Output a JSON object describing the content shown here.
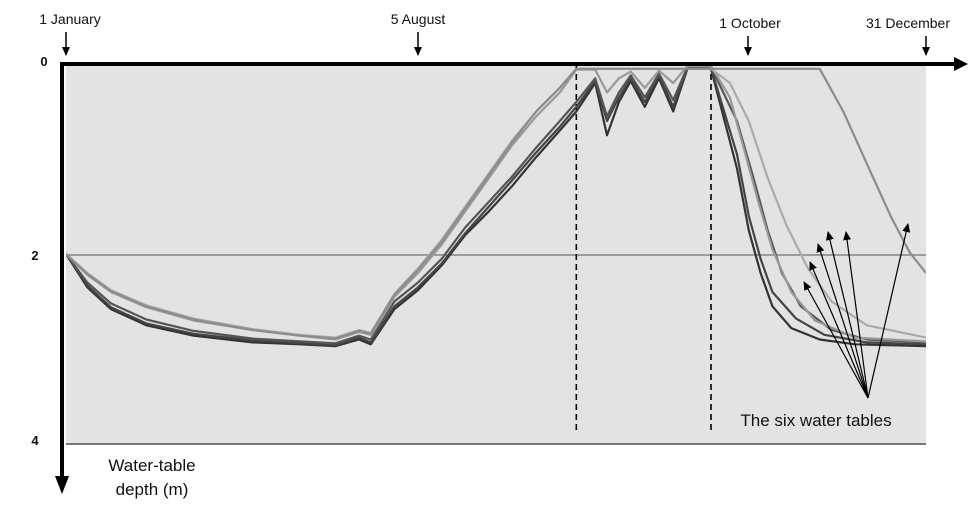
{
  "chart_data": {
    "type": "line",
    "xlabel": "",
    "ylabel": [
      "Water-table",
      "depth (m)"
    ],
    "y_inverted": true,
    "ylim": [
      0,
      4
    ],
    "yticks": [
      "0",
      "2",
      "4"
    ],
    "xlim_day": [
      1,
      365
    ],
    "date_markers": [
      {
        "label": "1 January",
        "day": 1,
        "dashed": false
      },
      {
        "label": "5 August",
        "day": 217,
        "dashed": true
      },
      {
        "label": "1 October",
        "day": 274,
        "dashed": true
      },
      {
        "label": "31 December",
        "day": 365,
        "dashed": false
      }
    ],
    "annotation": "The six water tables",
    "grid": "horizontal line at depth 2",
    "colors": {
      "background": "#e3e3e3",
      "axis": "#000000",
      "dark_series": "#333333",
      "light_series": "#999999"
    },
    "series": [
      {
        "color": "#333333",
        "points": [
          [
            1,
            2.0
          ],
          [
            10,
            2.35
          ],
          [
            20,
            2.58
          ],
          [
            35,
            2.75
          ],
          [
            55,
            2.86
          ],
          [
            80,
            2.93
          ],
          [
            100,
            2.95
          ],
          [
            115,
            2.97
          ],
          [
            125,
            2.9
          ],
          [
            130,
            2.95
          ],
          [
            140,
            2.58
          ],
          [
            150,
            2.38
          ],
          [
            160,
            2.12
          ],
          [
            170,
            1.8
          ],
          [
            180,
            1.55
          ],
          [
            190,
            1.28
          ],
          [
            200,
            0.98
          ],
          [
            210,
            0.7
          ],
          [
            217,
            0.5
          ],
          [
            225,
            0.2
          ],
          [
            230,
            0.75
          ],
          [
            235,
            0.4
          ],
          [
            240,
            0.18
          ],
          [
            246,
            0.45
          ],
          [
            252,
            0.15
          ],
          [
            258,
            0.5
          ],
          [
            264,
            0.05
          ],
          [
            274,
            0.05
          ],
          [
            285,
            1.1
          ],
          [
            290,
            1.75
          ],
          [
            295,
            2.2
          ],
          [
            300,
            2.55
          ],
          [
            308,
            2.78
          ],
          [
            320,
            2.9
          ],
          [
            335,
            2.95
          ],
          [
            365,
            2.97
          ]
        ]
      },
      {
        "color": "#444444",
        "points": [
          [
            1,
            2.0
          ],
          [
            10,
            2.33
          ],
          [
            20,
            2.56
          ],
          [
            35,
            2.73
          ],
          [
            55,
            2.84
          ],
          [
            80,
            2.91
          ],
          [
            100,
            2.94
          ],
          [
            115,
            2.96
          ],
          [
            125,
            2.88
          ],
          [
            130,
            2.93
          ],
          [
            140,
            2.55
          ],
          [
            150,
            2.35
          ],
          [
            160,
            2.1
          ],
          [
            170,
            1.78
          ],
          [
            180,
            1.5
          ],
          [
            190,
            1.22
          ],
          [
            200,
            0.93
          ],
          [
            210,
            0.66
          ],
          [
            217,
            0.45
          ],
          [
            225,
            0.18
          ],
          [
            230,
            0.6
          ],
          [
            235,
            0.35
          ],
          [
            240,
            0.15
          ],
          [
            246,
            0.4
          ],
          [
            252,
            0.12
          ],
          [
            258,
            0.45
          ],
          [
            264,
            0.04
          ],
          [
            274,
            0.04
          ],
          [
            285,
            0.95
          ],
          [
            290,
            1.6
          ],
          [
            295,
            2.05
          ],
          [
            300,
            2.4
          ],
          [
            310,
            2.68
          ],
          [
            322,
            2.85
          ],
          [
            340,
            2.93
          ],
          [
            365,
            2.95
          ]
        ]
      },
      {
        "color": "#555555",
        "points": [
          [
            1,
            2.0
          ],
          [
            10,
            2.3
          ],
          [
            20,
            2.52
          ],
          [
            35,
            2.69
          ],
          [
            55,
            2.81
          ],
          [
            80,
            2.89
          ],
          [
            100,
            2.92
          ],
          [
            115,
            2.94
          ],
          [
            125,
            2.86
          ],
          [
            130,
            2.9
          ],
          [
            140,
            2.5
          ],
          [
            150,
            2.3
          ],
          [
            160,
            2.05
          ],
          [
            170,
            1.72
          ],
          [
            180,
            1.45
          ],
          [
            190,
            1.18
          ],
          [
            200,
            0.88
          ],
          [
            210,
            0.6
          ],
          [
            217,
            0.4
          ],
          [
            225,
            0.15
          ],
          [
            230,
            0.55
          ],
          [
            235,
            0.3
          ],
          [
            240,
            0.12
          ],
          [
            246,
            0.35
          ],
          [
            252,
            0.1
          ],
          [
            258,
            0.38
          ],
          [
            264,
            0.03
          ],
          [
            274,
            0.03
          ],
          [
            285,
            0.6
          ],
          [
            292,
            1.2
          ],
          [
            298,
            1.75
          ],
          [
            304,
            2.2
          ],
          [
            312,
            2.55
          ],
          [
            325,
            2.8
          ],
          [
            340,
            2.9
          ],
          [
            365,
            2.93
          ]
        ]
      },
      {
        "color": "#999999",
        "points": [
          [
            1,
            2.0
          ],
          [
            10,
            2.22
          ],
          [
            20,
            2.4
          ],
          [
            35,
            2.56
          ],
          [
            55,
            2.7
          ],
          [
            80,
            2.8
          ],
          [
            100,
            2.86
          ],
          [
            115,
            2.9
          ],
          [
            125,
            2.82
          ],
          [
            130,
            2.85
          ],
          [
            140,
            2.45
          ],
          [
            150,
            2.2
          ],
          [
            160,
            1.9
          ],
          [
            170,
            1.55
          ],
          [
            180,
            1.2
          ],
          [
            190,
            0.85
          ],
          [
            200,
            0.55
          ],
          [
            210,
            0.3
          ],
          [
            217,
            0.06
          ],
          [
            225,
            0.06
          ],
          [
            230,
            0.3
          ],
          [
            235,
            0.15
          ],
          [
            240,
            0.08
          ],
          [
            246,
            0.25
          ],
          [
            252,
            0.07
          ],
          [
            258,
            0.2
          ],
          [
            264,
            0.02
          ],
          [
            274,
            0.02
          ],
          [
            282,
            0.35
          ],
          [
            288,
            0.9
          ],
          [
            294,
            1.45
          ],
          [
            300,
            1.95
          ],
          [
            308,
            2.4
          ],
          [
            318,
            2.7
          ],
          [
            335,
            2.88
          ],
          [
            365,
            2.92
          ]
        ]
      },
      {
        "color": "#aaaaaa",
        "points": [
          [
            1,
            2.0
          ],
          [
            10,
            2.2
          ],
          [
            20,
            2.38
          ],
          [
            35,
            2.54
          ],
          [
            55,
            2.68
          ],
          [
            80,
            2.79
          ],
          [
            100,
            2.85
          ],
          [
            115,
            2.88
          ],
          [
            125,
            2.8
          ],
          [
            130,
            2.83
          ],
          [
            140,
            2.42
          ],
          [
            150,
            2.15
          ],
          [
            160,
            1.85
          ],
          [
            170,
            1.5
          ],
          [
            180,
            1.15
          ],
          [
            190,
            0.8
          ],
          [
            200,
            0.5
          ],
          [
            210,
            0.25
          ],
          [
            217,
            0.05
          ],
          [
            274,
            0.05
          ],
          [
            282,
            0.2
          ],
          [
            290,
            0.6
          ],
          [
            298,
            1.2
          ],
          [
            306,
            1.7
          ],
          [
            315,
            2.15
          ],
          [
            325,
            2.5
          ],
          [
            340,
            2.75
          ],
          [
            365,
            2.88
          ]
        ]
      },
      {
        "color": "#8c8c8c",
        "points": [
          [
            1,
            2.0
          ],
          [
            10,
            2.21
          ],
          [
            20,
            2.39
          ],
          [
            35,
            2.55
          ],
          [
            55,
            2.69
          ],
          [
            80,
            2.8
          ],
          [
            100,
            2.86
          ],
          [
            115,
            2.89
          ],
          [
            125,
            2.81
          ],
          [
            130,
            2.84
          ],
          [
            140,
            2.43
          ],
          [
            150,
            2.17
          ],
          [
            160,
            1.87
          ],
          [
            170,
            1.52
          ],
          [
            180,
            1.17
          ],
          [
            190,
            0.82
          ],
          [
            200,
            0.5
          ],
          [
            210,
            0.25
          ],
          [
            217,
            0.05
          ],
          [
            320,
            0.05
          ],
          [
            330,
            0.5
          ],
          [
            340,
            1.05
          ],
          [
            350,
            1.6
          ],
          [
            358,
            1.98
          ],
          [
            365,
            2.2
          ]
        ]
      }
    ]
  }
}
